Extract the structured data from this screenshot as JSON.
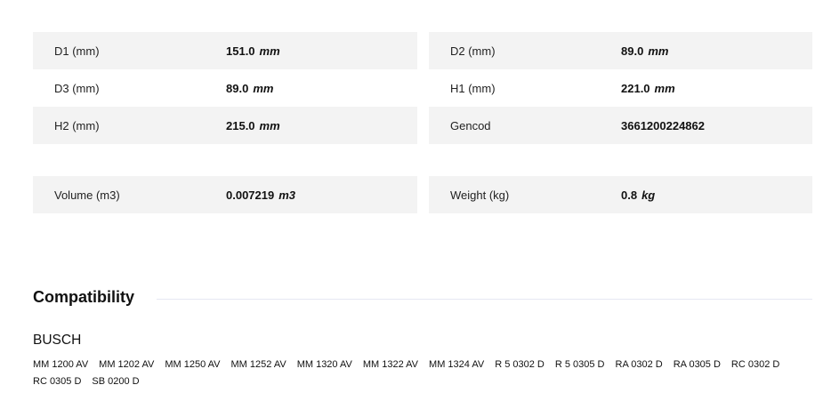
{
  "specs": [
    {
      "label": "D1 (mm)",
      "value": "151.0",
      "unit": "mm"
    },
    {
      "label": "D2 (mm)",
      "value": "89.0",
      "unit": "mm"
    },
    {
      "label": "D3 (mm)",
      "value": "89.0",
      "unit": "mm"
    },
    {
      "label": "H1 (mm)",
      "value": "221.0",
      "unit": "mm"
    },
    {
      "label": "H2 (mm)",
      "value": "215.0",
      "unit": "mm"
    },
    {
      "label": "Gencod",
      "value": "3661200224862",
      "unit": ""
    },
    {
      "label": "Volume (m3)",
      "value": "0.007219",
      "unit": "m3"
    },
    {
      "label": "Weight (kg)",
      "value": "0.8",
      "unit": "kg"
    }
  ],
  "compatibility": {
    "title": "Compatibility",
    "brand": "BUSCH",
    "models": [
      "MM 1200 AV",
      "MM 1202 AV",
      "MM 1250 AV",
      "MM 1252 AV",
      "MM 1320 AV",
      "MM 1322 AV",
      "MM 1324 AV",
      "R 5 0302 D",
      "R 5 0305 D",
      "RA 0302 D",
      "RA 0305 D",
      "RC 0302 D",
      "RC 0305 D",
      "SB 0200 D"
    ]
  }
}
